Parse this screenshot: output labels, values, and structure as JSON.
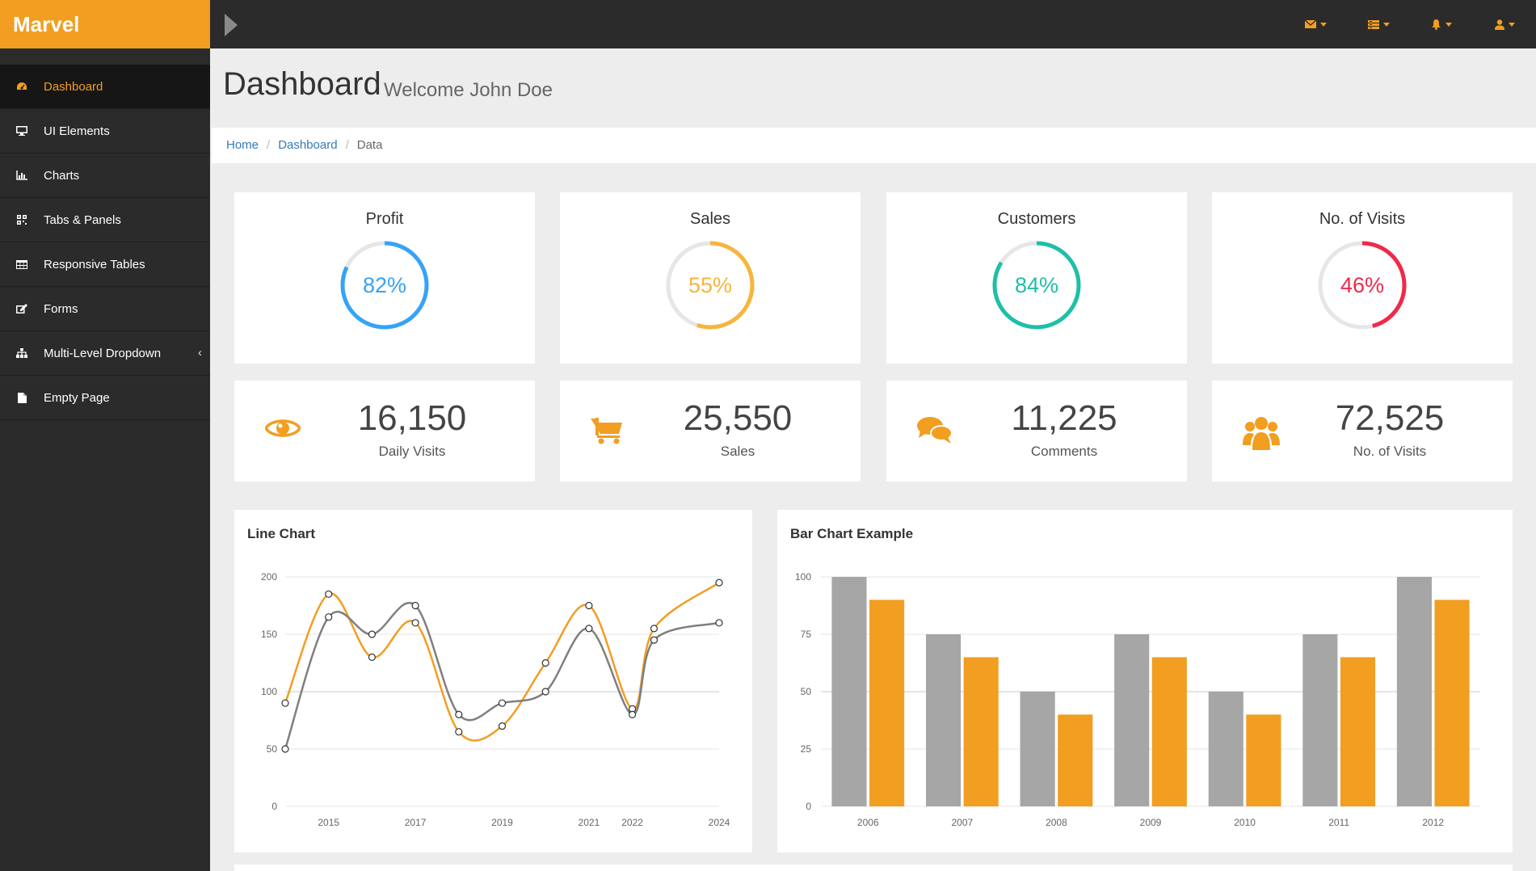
{
  "brand": "Marvel",
  "sidebar": {
    "items": [
      {
        "label": "Dashboard",
        "icon": "dashboard-icon"
      },
      {
        "label": "UI Elements",
        "icon": "desktop-icon"
      },
      {
        "label": "Charts",
        "icon": "bar-chart-icon"
      },
      {
        "label": "Tabs & Panels",
        "icon": "qrcode-icon"
      },
      {
        "label": "Responsive Tables",
        "icon": "table-icon"
      },
      {
        "label": "Forms",
        "icon": "edit-icon"
      },
      {
        "label": "Multi-Level Dropdown",
        "icon": "sitemap-icon"
      },
      {
        "label": "Empty Page",
        "icon": "file-icon"
      }
    ]
  },
  "topbar": {
    "icons": [
      "envelope-icon",
      "tasks-icon",
      "bell-icon",
      "user-icon"
    ]
  },
  "header": {
    "title": "Dashboard",
    "subtitle": "Welcome John Doe"
  },
  "breadcrumb": {
    "home": "Home",
    "dashboard": "Dashboard",
    "current": "Data"
  },
  "circles": [
    {
      "title": "Profit",
      "value": "82%",
      "percent": 82,
      "color": "#36a3f7"
    },
    {
      "title": "Sales",
      "value": "55%",
      "percent": 55,
      "color": "#f7b53c"
    },
    {
      "title": "Customers",
      "value": "84%",
      "percent": 84,
      "color": "#1ebfa8"
    },
    {
      "title": "No. of Visits",
      "value": "46%",
      "percent": 46,
      "color": "#f0294a"
    }
  ],
  "stats": [
    {
      "value": "16,150",
      "label": "Daily Visits",
      "icon": "eye-icon"
    },
    {
      "value": "25,550",
      "label": "Sales",
      "icon": "shopping-cart-icon"
    },
    {
      "value": "11,225",
      "label": "Comments",
      "icon": "comments-icon"
    },
    {
      "value": "72,525",
      "label": "No. of Visits",
      "icon": "users-icon"
    }
  ],
  "colors": {
    "accent": "#f19e21",
    "gray_series": "#7f7f7f",
    "bar_gray": "#a6a6a6"
  },
  "chart_data": [
    {
      "type": "line",
      "title": "Line Chart",
      "x": [
        2014.0,
        2015.0,
        2016.0,
        2017.0,
        2018.0,
        2019.0,
        2020.0,
        2021.0,
        2022.0,
        2022.5,
        2024.0
      ],
      "x_ticks": [
        "2015",
        "2017",
        "2019",
        "2021",
        "2022",
        "2024"
      ],
      "x_tick_values": [
        2015.0,
        2017.0,
        2019.0,
        2021.0,
        2022.0,
        2024.0
      ],
      "y_ticks": [
        0,
        50,
        100,
        150,
        200
      ],
      "ylim": [
        0,
        200
      ],
      "grid": true,
      "series": [
        {
          "values": [
            90,
            185,
            130,
            160,
            65,
            70,
            125,
            175,
            85,
            155,
            195
          ],
          "color": "#f19e21"
        },
        {
          "values": [
            50,
            165,
            150,
            175,
            80,
            90,
            100,
            155,
            80,
            145,
            160
          ],
          "color": "#7f7f7f"
        }
      ]
    },
    {
      "type": "bar",
      "title": "Bar Chart Example",
      "categories": [
        "2006",
        "2007",
        "2008",
        "2009",
        "2010",
        "2011",
        "2012"
      ],
      "y_ticks": [
        0,
        25,
        50,
        75,
        100
      ],
      "ylim": [
        0,
        100
      ],
      "grid": true,
      "series": [
        {
          "values": [
            100,
            75,
            50,
            75,
            50,
            75,
            100
          ],
          "color": "#a6a6a6"
        },
        {
          "values": [
            90,
            65,
            40,
            65,
            40,
            65,
            90
          ],
          "color": "#f19e21"
        }
      ]
    }
  ]
}
